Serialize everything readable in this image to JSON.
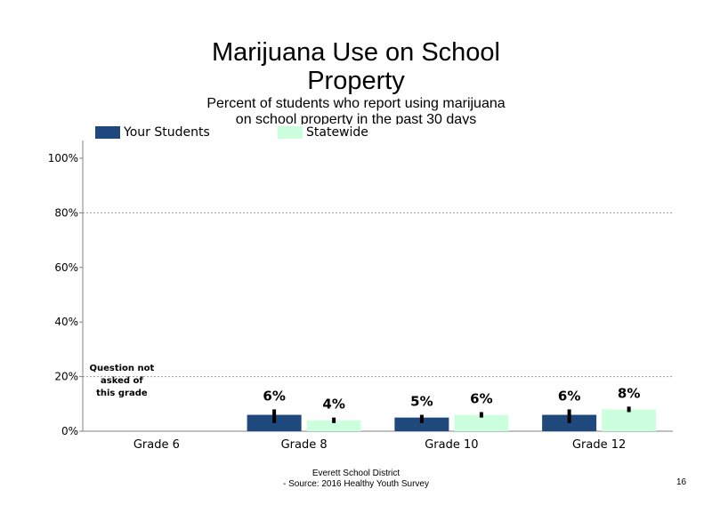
{
  "header": {
    "title_line1": "Marijuana Use on School",
    "title_line2": "Property",
    "subtitle_line1": "Percent of students who report using marijuana",
    "subtitle_line2": "on school property in the past 30 days"
  },
  "footer": {
    "line1": "Everett School District",
    "line2": "- Source: 2016 Healthy  Youth Survey",
    "page_number": "16"
  },
  "chart_data": {
    "type": "bar",
    "categories": [
      "Grade 6",
      "Grade 8",
      "Grade 10",
      "Grade 12"
    ],
    "series": [
      {
        "name": "Your Students",
        "color": "#1f497d",
        "values": [
          null,
          6,
          5,
          6
        ],
        "labels": [
          "",
          "6%",
          "5%",
          "6%"
        ],
        "ci": [
          null,
          [
            3,
            8
          ],
          [
            3,
            6
          ],
          [
            3,
            8
          ]
        ]
      },
      {
        "name": "Statewide",
        "color": "#ccffdd",
        "values": [
          null,
          4,
          6,
          8
        ],
        "labels": [
          "",
          "4%",
          "6%",
          "8%"
        ],
        "ci": [
          null,
          [
            3,
            5
          ],
          [
            5,
            7
          ],
          [
            7,
            9
          ]
        ]
      }
    ],
    "ylim": [
      0,
      100
    ],
    "yticks": [
      "0%",
      "20%",
      "40%",
      "60%",
      "80%",
      "100%"
    ],
    "ytick_values": [
      0,
      20,
      40,
      60,
      80,
      100
    ],
    "grid": "dotted horizontal at 20% and 80%",
    "legend_position": "top-left",
    "annotations": [
      {
        "category": "Grade 6",
        "lines": [
          "Question not",
          "asked of",
          "this grade"
        ]
      }
    ]
  }
}
